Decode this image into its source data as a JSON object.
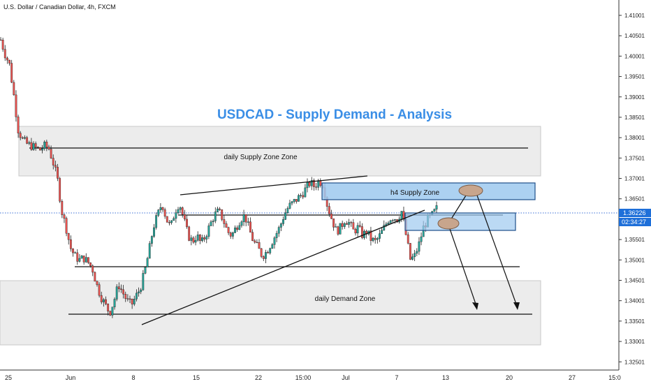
{
  "header": {
    "symbol_title": "U.S. Dollar / Canadian Dollar, 4h, FXCM"
  },
  "colors": {
    "bull": "#26a69a",
    "bear": "#ef5350",
    "candle": "#1e1e1e",
    "zone_fill": "#ececec",
    "zone_stroke": "#c9c9c9",
    "h4_fill": "#9ec9ef",
    "h4_stroke": "#1f4f8a",
    "title": "#3a8ee6",
    "price_tag": "#1e6fd9",
    "marker": "#c8a58c"
  },
  "chart_data": {
    "type": "candlestick",
    "title": "USDCAD - Supply Demand - Analysis",
    "instrument": "USDCAD",
    "timeframe": "4h",
    "xlabels": [
      "25",
      "Jun",
      "8",
      "15",
      "22",
      "15:00",
      "Jul",
      "7",
      "13",
      "20",
      "27",
      "15:0"
    ],
    "yticks": [
      1.41001,
      1.40501,
      1.40001,
      1.39501,
      1.39001,
      1.38501,
      1.38001,
      1.37501,
      1.37001,
      1.36501,
      1.35501,
      1.35001,
      1.34501,
      1.34001,
      1.33501,
      1.33001,
      1.32501
    ],
    "ylim": [
      1.3235,
      1.413
    ],
    "last_price": "1.36226",
    "countdown": "02:34:27",
    "close_path": [
      1.404,
      1.4005,
      1.398,
      1.3905,
      1.382,
      1.3795,
      1.3785,
      1.378,
      1.3775,
      1.377,
      1.378,
      1.3775,
      1.374,
      1.37,
      1.362,
      1.358,
      1.353,
      1.351,
      1.35,
      1.3505,
      1.3495,
      1.348,
      1.344,
      1.341,
      1.339,
      1.337,
      1.34,
      1.344,
      1.342,
      1.34,
      1.339,
      1.341,
      1.343,
      1.347,
      1.352,
      1.358,
      1.361,
      1.364,
      1.36,
      1.358,
      1.362,
      1.364,
      1.36,
      1.356,
      1.3545,
      1.356,
      1.354,
      1.356,
      1.3585,
      1.361,
      1.362,
      1.36,
      1.357,
      1.356,
      1.358,
      1.36,
      1.361,
      1.3575,
      1.3545,
      1.353,
      1.351,
      1.352,
      1.354,
      1.356,
      1.358,
      1.361,
      1.363,
      1.364,
      1.365,
      1.366,
      1.3675,
      1.369,
      1.368,
      1.3695,
      1.3685,
      1.363,
      1.36,
      1.357,
      1.358,
      1.36,
      1.359,
      1.357,
      1.358,
      1.356,
      1.357,
      1.355,
      1.3545,
      1.356,
      1.358,
      1.36,
      1.3605,
      1.36,
      1.362,
      1.356,
      1.35,
      1.351,
      1.354,
      1.358,
      1.36,
      1.361,
      1.3626
    ],
    "zones": [
      {
        "label": "daily Supply Zone Zone",
        "y_top": 1.3834,
        "y_bottom": 1.3714,
        "line": 1.378
      },
      {
        "label": "daily Demand Zone",
        "y_top": 1.3463,
        "y_bottom": 1.3307,
        "line": 1.3378
      },
      {
        "label": "h4 Supply Zone",
        "y_top": 1.3695,
        "y_bottom": 1.366
      },
      {
        "label": "",
        "y_top": 1.3632,
        "y_bottom": 1.3588
      }
    ],
    "horizontal_lines": [
      1.3622,
      1.3494
    ],
    "trendlines": [
      {
        "from": [
          1.3675
        ],
        "to": [
          1.3715
        ]
      },
      {
        "from": [
          1.3352
        ],
        "to": [
          1.3635
        ]
      }
    ]
  }
}
